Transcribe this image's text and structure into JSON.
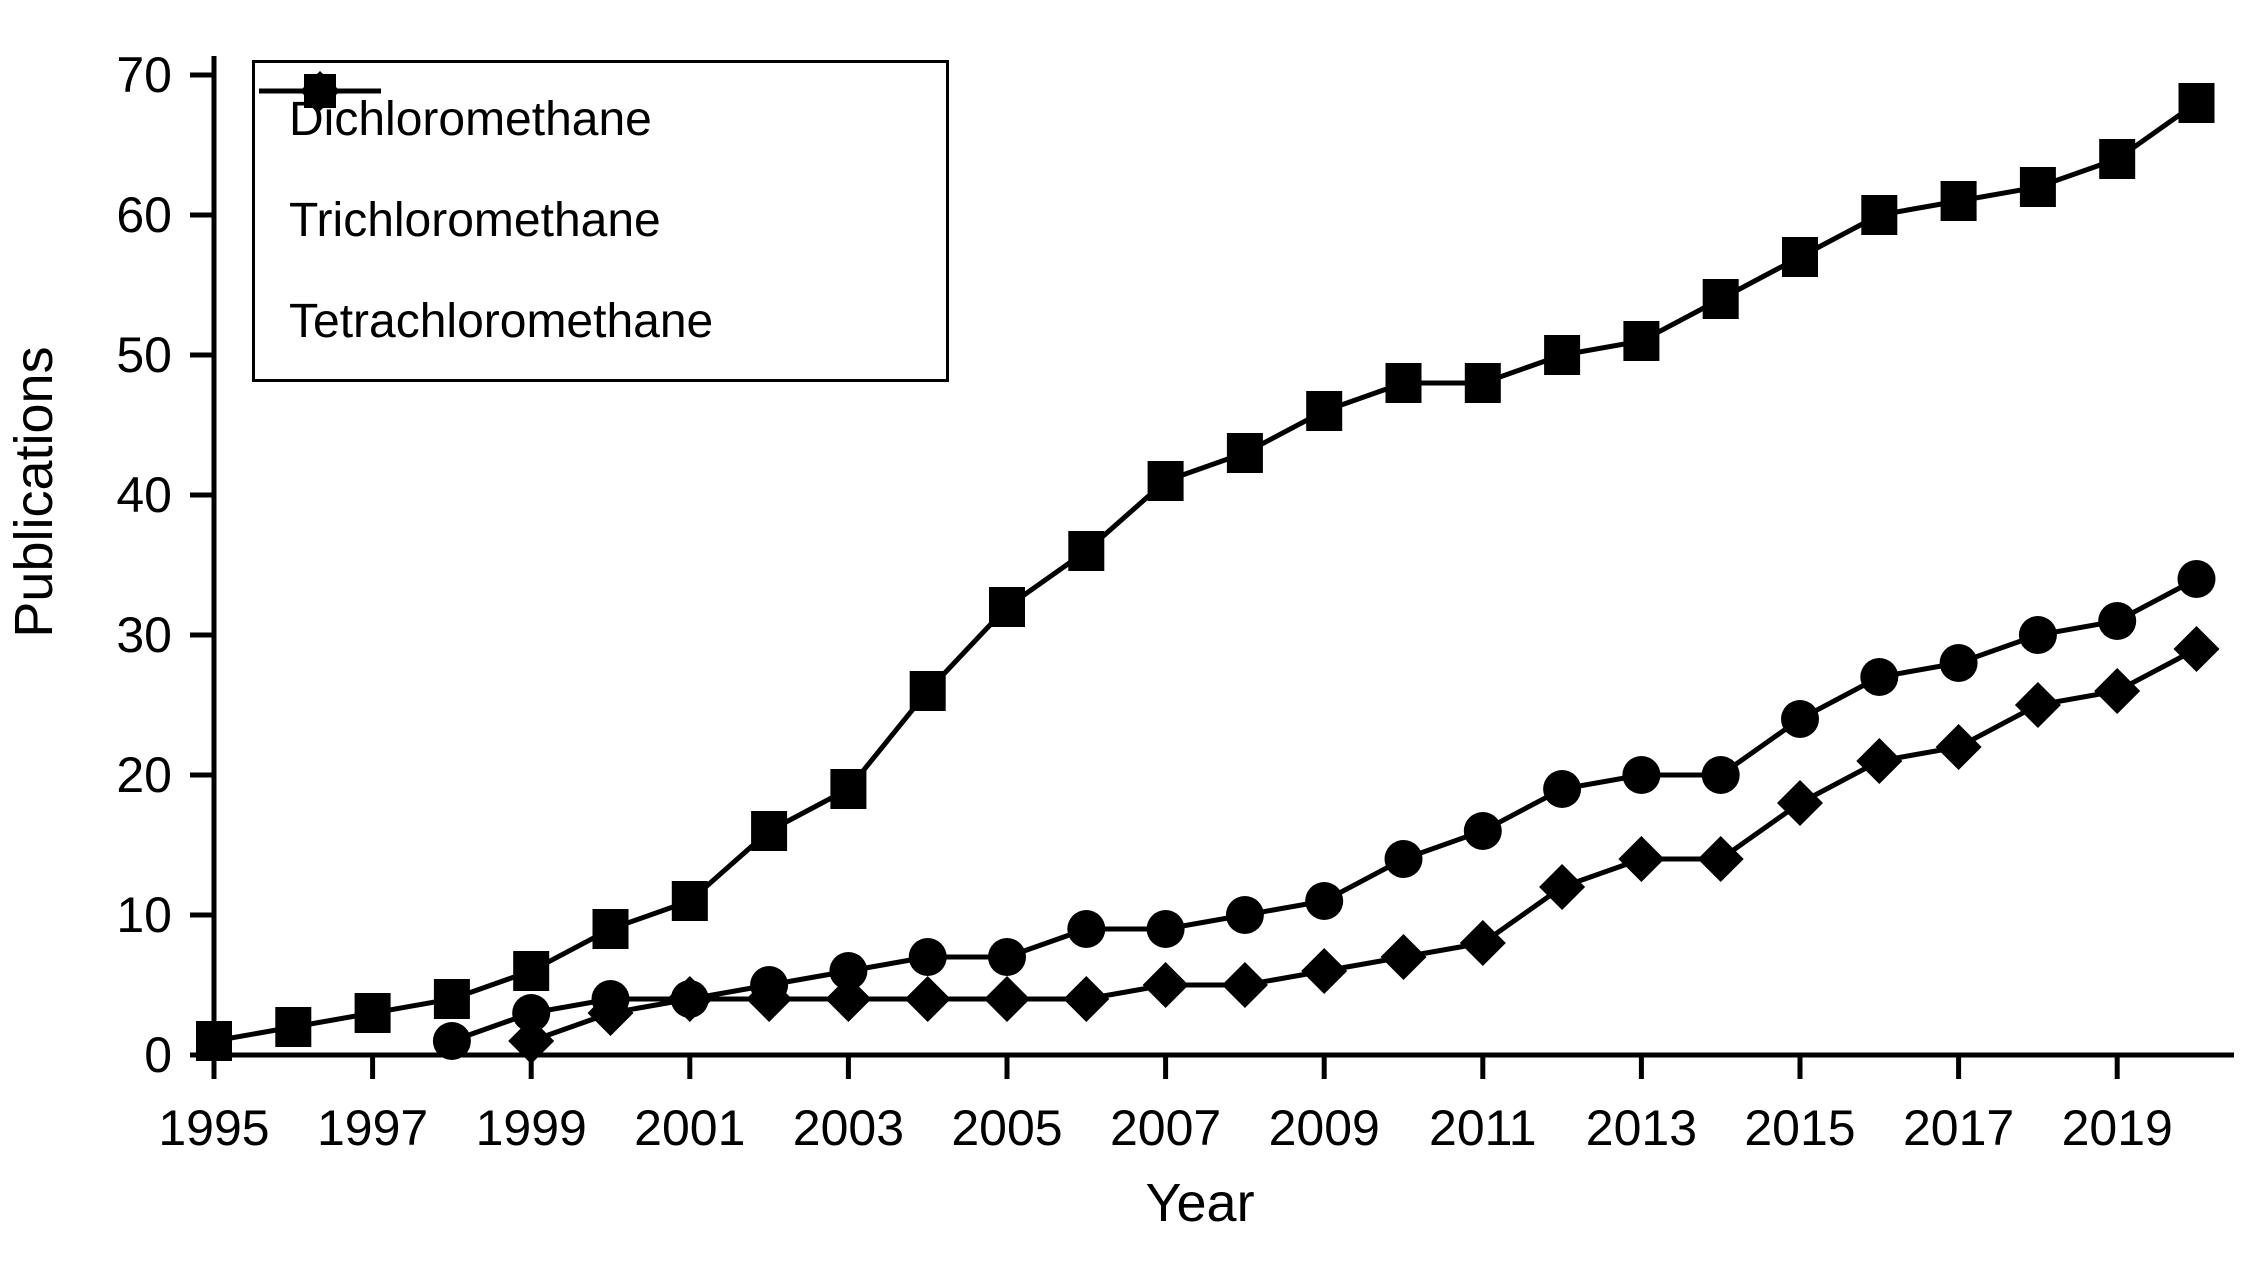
{
  "figure": {
    "background": "#ffffff",
    "ink": "#000000"
  },
  "chart_data": {
    "type": "line",
    "title": "",
    "xlabel": "Year",
    "ylabel": "Publications",
    "xlim": [
      1995,
      2020
    ],
    "ylim": [
      0,
      70
    ],
    "grid": false,
    "legend_position": "top-left",
    "x_tick_labels": [
      1995,
      1997,
      1999,
      2001,
      2003,
      2005,
      2007,
      2009,
      2011,
      2013,
      2015,
      2017,
      2019
    ],
    "y_tick_labels": [
      0,
      10,
      20,
      30,
      40,
      50,
      60,
      70
    ],
    "series": [
      {
        "name": "Dichloromethane",
        "marker": "circle",
        "color": "#000000",
        "start_year": 1998,
        "years": [
          1998,
          1999,
          2000,
          2001,
          2002,
          2003,
          2004,
          2005,
          2006,
          2007,
          2008,
          2009,
          2010,
          2011,
          2012,
          2013,
          2014,
          2015,
          2016,
          2017,
          2018,
          2019,
          2020
        ],
        "values": [
          1,
          3,
          4,
          4,
          5,
          6,
          7,
          7,
          9,
          9,
          10,
          11,
          14,
          16,
          19,
          20,
          20,
          24,
          27,
          28,
          30,
          31,
          34
        ]
      },
      {
        "name": "Trichloromethane",
        "marker": "diamond",
        "color": "#000000",
        "start_year": 1999,
        "years": [
          1999,
          2000,
          2001,
          2002,
          2003,
          2004,
          2005,
          2006,
          2007,
          2008,
          2009,
          2010,
          2011,
          2012,
          2013,
          2014,
          2015,
          2016,
          2017,
          2018,
          2019,
          2020
        ],
        "values": [
          1,
          3,
          4,
          4,
          4,
          4,
          4,
          4,
          5,
          5,
          6,
          7,
          8,
          12,
          14,
          14,
          18,
          21,
          22,
          25,
          26,
          29
        ]
      },
      {
        "name": "Tetrachloromethane",
        "marker": "square",
        "color": "#000000",
        "start_year": 1995,
        "years": [
          1995,
          1996,
          1997,
          1998,
          1999,
          2000,
          2001,
          2002,
          2003,
          2004,
          2005,
          2006,
          2007,
          2008,
          2009,
          2010,
          2011,
          2012,
          2013,
          2014,
          2015,
          2016,
          2017,
          2018,
          2019,
          2020
        ],
        "values": [
          1,
          2,
          3,
          4,
          6,
          9,
          11,
          16,
          19,
          26,
          32,
          36,
          41,
          43,
          46,
          48,
          48,
          50,
          51,
          54,
          57,
          60,
          61,
          62,
          64,
          68
        ]
      }
    ]
  }
}
